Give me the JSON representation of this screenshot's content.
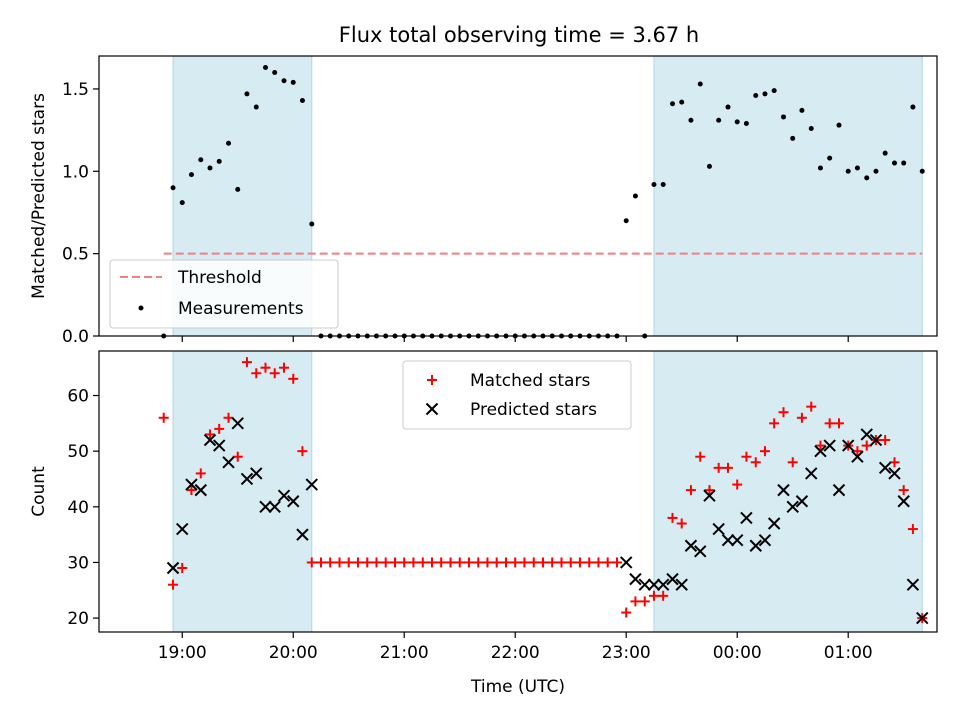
{
  "chart_data": [
    {
      "type": "scatter",
      "title": "Flux total observing time = 3.67 h",
      "xlabel": "",
      "ylabel": "Matched/Predicted stars",
      "xlim": [
        -0.75,
        6.8
      ],
      "ylim": [
        0,
        1.7
      ],
      "yticks": [
        0.0,
        0.5,
        1.0,
        1.5
      ],
      "ytick_labels": [
        "0.0",
        "0.5",
        "1.0",
        "1.5"
      ],
      "xticks": [
        0,
        1,
        2,
        3,
        4,
        5,
        6
      ],
      "shaded_spans": [
        [
          -0.083,
          1.167
        ],
        [
          4.25,
          6.667
        ]
      ],
      "threshold": {
        "name": "Threshold",
        "y": 0.5,
        "x_range": [
          -0.167,
          6.667
        ],
        "color": "#f08080"
      },
      "legend": {
        "placement": "lower-left"
      },
      "series": [
        {
          "name": "Measurements",
          "color": "#000000",
          "points": [
            [
              -0.167,
              0
            ],
            [
              -0.083,
              0.9
            ],
            [
              0,
              0.81
            ],
            [
              0.083,
              0.98
            ],
            [
              0.167,
              1.07
            ],
            [
              0.25,
              1.02
            ],
            [
              0.333,
              1.06
            ],
            [
              0.417,
              1.17
            ],
            [
              0.5,
              0.89
            ],
            [
              0.583,
              1.47
            ],
            [
              0.667,
              1.39
            ],
            [
              0.75,
              1.63
            ],
            [
              0.833,
              1.6
            ],
            [
              0.917,
              1.55
            ],
            [
              1.0,
              1.54
            ],
            [
              1.083,
              1.43
            ],
            [
              1.167,
              0.68
            ],
            [
              1.25,
              0
            ],
            [
              1.333,
              0
            ],
            [
              1.417,
              0
            ],
            [
              1.5,
              0
            ],
            [
              1.583,
              0
            ],
            [
              1.667,
              0
            ],
            [
              1.75,
              0
            ],
            [
              1.833,
              0
            ],
            [
              1.917,
              0
            ],
            [
              2.0,
              0
            ],
            [
              2.083,
              0
            ],
            [
              2.167,
              0
            ],
            [
              2.25,
              0
            ],
            [
              2.333,
              0
            ],
            [
              2.417,
              0
            ],
            [
              2.5,
              0
            ],
            [
              2.583,
              0
            ],
            [
              2.667,
              0
            ],
            [
              2.75,
              0
            ],
            [
              2.833,
              0
            ],
            [
              2.917,
              0
            ],
            [
              3.0,
              0
            ],
            [
              3.083,
              0
            ],
            [
              3.167,
              0
            ],
            [
              3.25,
              0
            ],
            [
              3.333,
              0
            ],
            [
              3.417,
              0
            ],
            [
              3.5,
              0
            ],
            [
              3.583,
              0
            ],
            [
              3.667,
              0
            ],
            [
              3.75,
              0
            ],
            [
              3.833,
              0
            ],
            [
              3.917,
              0
            ],
            [
              4.0,
              0.7
            ],
            [
              4.083,
              0.85
            ],
            [
              4.167,
              0
            ],
            [
              4.25,
              0.92
            ],
            [
              4.333,
              0.92
            ],
            [
              4.417,
              1.41
            ],
            [
              4.5,
              1.42
            ],
            [
              4.583,
              1.31
            ],
            [
              4.667,
              1.53
            ],
            [
              4.75,
              1.03
            ],
            [
              4.833,
              1.31
            ],
            [
              4.917,
              1.39
            ],
            [
              5.0,
              1.3
            ],
            [
              5.083,
              1.29
            ],
            [
              5.167,
              1.46
            ],
            [
              5.25,
              1.47
            ],
            [
              5.333,
              1.49
            ],
            [
              5.417,
              1.33
            ],
            [
              5.5,
              1.2
            ],
            [
              5.583,
              1.37
            ],
            [
              5.667,
              1.26
            ],
            [
              5.75,
              1.02
            ],
            [
              5.833,
              1.08
            ],
            [
              5.917,
              1.28
            ],
            [
              6.0,
              1.0
            ],
            [
              6.083,
              1.02
            ],
            [
              6.167,
              0.96
            ],
            [
              6.25,
              1.0
            ],
            [
              6.333,
              1.11
            ],
            [
              6.417,
              1.05
            ],
            [
              6.5,
              1.05
            ],
            [
              6.583,
              1.39
            ],
            [
              6.667,
              1.0
            ]
          ]
        }
      ]
    },
    {
      "type": "scatter",
      "title": "",
      "xlabel": "Time (UTC)",
      "ylabel": "Count",
      "xlim": [
        -0.75,
        6.8
      ],
      "ylim": [
        17.5,
        68
      ],
      "yticks": [
        20,
        30,
        40,
        50,
        60
      ],
      "ytick_labels": [
        "20",
        "30",
        "40",
        "50",
        "60"
      ],
      "xticks": [
        0,
        1,
        2,
        3,
        4,
        5,
        6
      ],
      "xtick_labels": [
        "19:00",
        "20:00",
        "21:00",
        "22:00",
        "23:00",
        "00:00",
        "01:00"
      ],
      "shaded_spans": [
        [
          -0.083,
          1.167
        ],
        [
          4.25,
          6.667
        ]
      ],
      "legend": {
        "placement": "top-center"
      },
      "series": [
        {
          "name": "Matched stars",
          "marker": "plus",
          "color": "#ff0000",
          "points": [
            [
              -0.167,
              56
            ],
            [
              -0.083,
              26
            ],
            [
              0,
              29
            ],
            [
              0.083,
              43
            ],
            [
              0.167,
              46
            ],
            [
              0.25,
              53
            ],
            [
              0.333,
              54
            ],
            [
              0.417,
              56
            ],
            [
              0.5,
              49
            ],
            [
              0.583,
              66
            ],
            [
              0.667,
              64
            ],
            [
              0.75,
              65
            ],
            [
              0.833,
              64
            ],
            [
              0.917,
              65
            ],
            [
              1.0,
              63
            ],
            [
              1.083,
              50
            ],
            [
              1.167,
              30
            ],
            [
              1.25,
              30
            ],
            [
              1.333,
              30
            ],
            [
              1.417,
              30
            ],
            [
              1.5,
              30
            ],
            [
              1.583,
              30
            ],
            [
              1.667,
              30
            ],
            [
              1.75,
              30
            ],
            [
              1.833,
              30
            ],
            [
              1.917,
              30
            ],
            [
              2.0,
              30
            ],
            [
              2.083,
              30
            ],
            [
              2.167,
              30
            ],
            [
              2.25,
              30
            ],
            [
              2.333,
              30
            ],
            [
              2.417,
              30
            ],
            [
              2.5,
              30
            ],
            [
              2.583,
              30
            ],
            [
              2.667,
              30
            ],
            [
              2.75,
              30
            ],
            [
              2.833,
              30
            ],
            [
              2.917,
              30
            ],
            [
              3.0,
              30
            ],
            [
              3.083,
              30
            ],
            [
              3.167,
              30
            ],
            [
              3.25,
              30
            ],
            [
              3.333,
              30
            ],
            [
              3.417,
              30
            ],
            [
              3.5,
              30
            ],
            [
              3.583,
              30
            ],
            [
              3.667,
              30
            ],
            [
              3.75,
              30
            ],
            [
              3.833,
              30
            ],
            [
              3.917,
              30
            ],
            [
              4.0,
              21
            ],
            [
              4.083,
              23
            ],
            [
              4.167,
              23
            ],
            [
              4.25,
              24
            ],
            [
              4.333,
              24
            ],
            [
              4.417,
              38
            ],
            [
              4.5,
              37
            ],
            [
              4.583,
              43
            ],
            [
              4.667,
              49
            ],
            [
              4.75,
              43
            ],
            [
              4.833,
              47
            ],
            [
              4.917,
              47
            ],
            [
              5.0,
              44
            ],
            [
              5.083,
              49
            ],
            [
              5.167,
              48
            ],
            [
              5.25,
              50
            ],
            [
              5.333,
              55
            ],
            [
              5.417,
              57
            ],
            [
              5.5,
              48
            ],
            [
              5.583,
              56
            ],
            [
              5.667,
              58
            ],
            [
              5.75,
              51
            ],
            [
              5.833,
              55
            ],
            [
              5.917,
              55
            ],
            [
              6.0,
              51
            ],
            [
              6.083,
              50
            ],
            [
              6.167,
              51
            ],
            [
              6.25,
              52
            ],
            [
              6.333,
              52
            ],
            [
              6.417,
              48
            ],
            [
              6.5,
              43
            ],
            [
              6.583,
              36
            ],
            [
              6.667,
              20
            ]
          ]
        },
        {
          "name": "Predicted stars",
          "marker": "x",
          "color": "#000000",
          "points": [
            [
              -0.083,
              29
            ],
            [
              0,
              36
            ],
            [
              0.083,
              44
            ],
            [
              0.167,
              43
            ],
            [
              0.25,
              52
            ],
            [
              0.333,
              51
            ],
            [
              0.417,
              48
            ],
            [
              0.5,
              55
            ],
            [
              0.583,
              45
            ],
            [
              0.667,
              46
            ],
            [
              0.75,
              40
            ],
            [
              0.833,
              40
            ],
            [
              0.917,
              42
            ],
            [
              1.0,
              41
            ],
            [
              1.083,
              35
            ],
            [
              1.167,
              44
            ],
            [
              4.0,
              30
            ],
            [
              4.083,
              27
            ],
            [
              4.167,
              26
            ],
            [
              4.25,
              26
            ],
            [
              4.333,
              26
            ],
            [
              4.417,
              27
            ],
            [
              4.5,
              26
            ],
            [
              4.583,
              33
            ],
            [
              4.667,
              32
            ],
            [
              4.75,
              42
            ],
            [
              4.833,
              36
            ],
            [
              4.917,
              34
            ],
            [
              5.0,
              34
            ],
            [
              5.083,
              38
            ],
            [
              5.167,
              33
            ],
            [
              5.25,
              34
            ],
            [
              5.333,
              37
            ],
            [
              5.417,
              43
            ],
            [
              5.5,
              40
            ],
            [
              5.583,
              41
            ],
            [
              5.667,
              46
            ],
            [
              5.75,
              50
            ],
            [
              5.833,
              51
            ],
            [
              5.917,
              43
            ],
            [
              6.0,
              51
            ],
            [
              6.083,
              49
            ],
            [
              6.167,
              53
            ],
            [
              6.25,
              52
            ],
            [
              6.333,
              47
            ],
            [
              6.417,
              46
            ],
            [
              6.5,
              41
            ],
            [
              6.583,
              26
            ],
            [
              6.667,
              20
            ]
          ]
        }
      ]
    }
  ]
}
